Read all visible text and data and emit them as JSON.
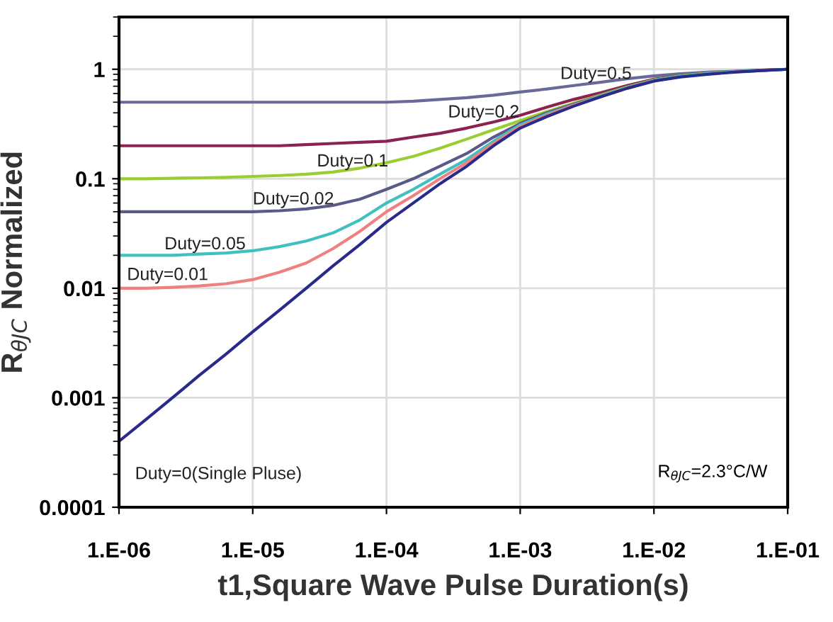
{
  "chart_data": {
    "type": "line",
    "xlabel": "t1,Square Wave Pulse Duration(s)",
    "ylabel": "R$_{θJC}$ Normalized",
    "log": true,
    "grid": true,
    "legend": false,
    "marker": "none",
    "line_style": "solid",
    "categories": [
      "1.E-06",
      null,
      null,
      null,
      null,
      "1.E-05",
      null,
      null,
      null,
      null,
      "1.E-04",
      null,
      null,
      null,
      null,
      "1.E-03",
      null,
      null,
      null,
      null,
      "1.E-02",
      null,
      null,
      null,
      null,
      "1.E-01"
    ],
    "ylim": [
      0.0001,
      3
    ],
    "yticks": [
      0.0001,
      0.001,
      0.01,
      0.1,
      1
    ],
    "series": [
      {
        "name": "Duty=0.5",
        "color": "#6a6a9a",
        "values": [
          0.5,
          0.5,
          0.5,
          0.5,
          0.5,
          0.5,
          0.5,
          0.5,
          0.5,
          0.5,
          0.5,
          0.51,
          0.53,
          0.55,
          0.58,
          0.62,
          0.66,
          0.71,
          0.76,
          0.82,
          0.87,
          0.91,
          0.94,
          0.96,
          0.98,
          1
        ]
      },
      {
        "name": "Duty=0.2",
        "color": "#8b2252",
        "values": [
          0.2,
          0.2,
          0.2,
          0.2,
          0.2,
          0.2,
          0.2,
          0.205,
          0.21,
          0.215,
          0.22,
          0.24,
          0.26,
          0.29,
          0.33,
          0.38,
          0.45,
          0.53,
          0.61,
          0.71,
          0.81,
          0.87,
          0.92,
          0.95,
          0.98,
          1
        ]
      },
      {
        "name": "Duty=0.1",
        "color": "#9acd32",
        "values": [
          0.1,
          0.1,
          0.101,
          0.102,
          0.103,
          0.105,
          0.107,
          0.11,
          0.115,
          0.125,
          0.14,
          0.16,
          0.19,
          0.23,
          0.28,
          0.34,
          0.41,
          0.49,
          0.58,
          0.69,
          0.8,
          0.87,
          0.92,
          0.95,
          null,
          null
        ]
      },
      {
        "name": "Duty=0.02",
        "color": "#5a5a8a",
        "values": [
          0.05,
          0.05,
          0.05,
          0.05,
          0.05,
          0.05,
          0.051,
          0.053,
          0.057,
          0.065,
          0.08,
          0.1,
          0.13,
          0.17,
          0.24,
          0.32,
          0.4,
          0.48,
          0.57,
          0.68,
          0.79,
          0.86,
          0.91,
          0.95,
          0.97,
          1
        ]
      },
      {
        "name": "Duty=0.05",
        "color": "#40c0c0",
        "values": [
          0.02,
          0.02,
          0.02,
          0.0205,
          0.021,
          0.022,
          0.024,
          0.027,
          0.032,
          0.042,
          0.06,
          0.08,
          0.11,
          0.15,
          0.22,
          0.31,
          0.39,
          0.47,
          0.57,
          0.68,
          0.79,
          0.86,
          0.91,
          0.95,
          0.97,
          1
        ]
      },
      {
        "name": "Duty=0.01",
        "color": "#f08080",
        "values": [
          0.01,
          0.01,
          0.0102,
          0.0105,
          0.011,
          0.012,
          0.014,
          0.017,
          0.023,
          0.033,
          0.05,
          0.07,
          0.1,
          0.14,
          0.21,
          0.3,
          0.38,
          0.47,
          0.56,
          0.67,
          0.78,
          null,
          null,
          null,
          null,
          null
        ]
      },
      {
        "name": "Duty=0(Single Pluse)",
        "color": "#2a2a8a",
        "values": [
          0.0004,
          0.00063,
          0.001,
          0.0016,
          0.0025,
          0.004,
          0.0063,
          0.01,
          0.016,
          0.025,
          0.04,
          0.06,
          0.09,
          0.13,
          0.2,
          0.29,
          0.37,
          0.46,
          0.56,
          0.67,
          0.78,
          0.85,
          0.9,
          0.94,
          0.97,
          1
        ]
      }
    ],
    "annotations": [
      "R$_{θJC}$=2.3°C/W"
    ]
  }
}
